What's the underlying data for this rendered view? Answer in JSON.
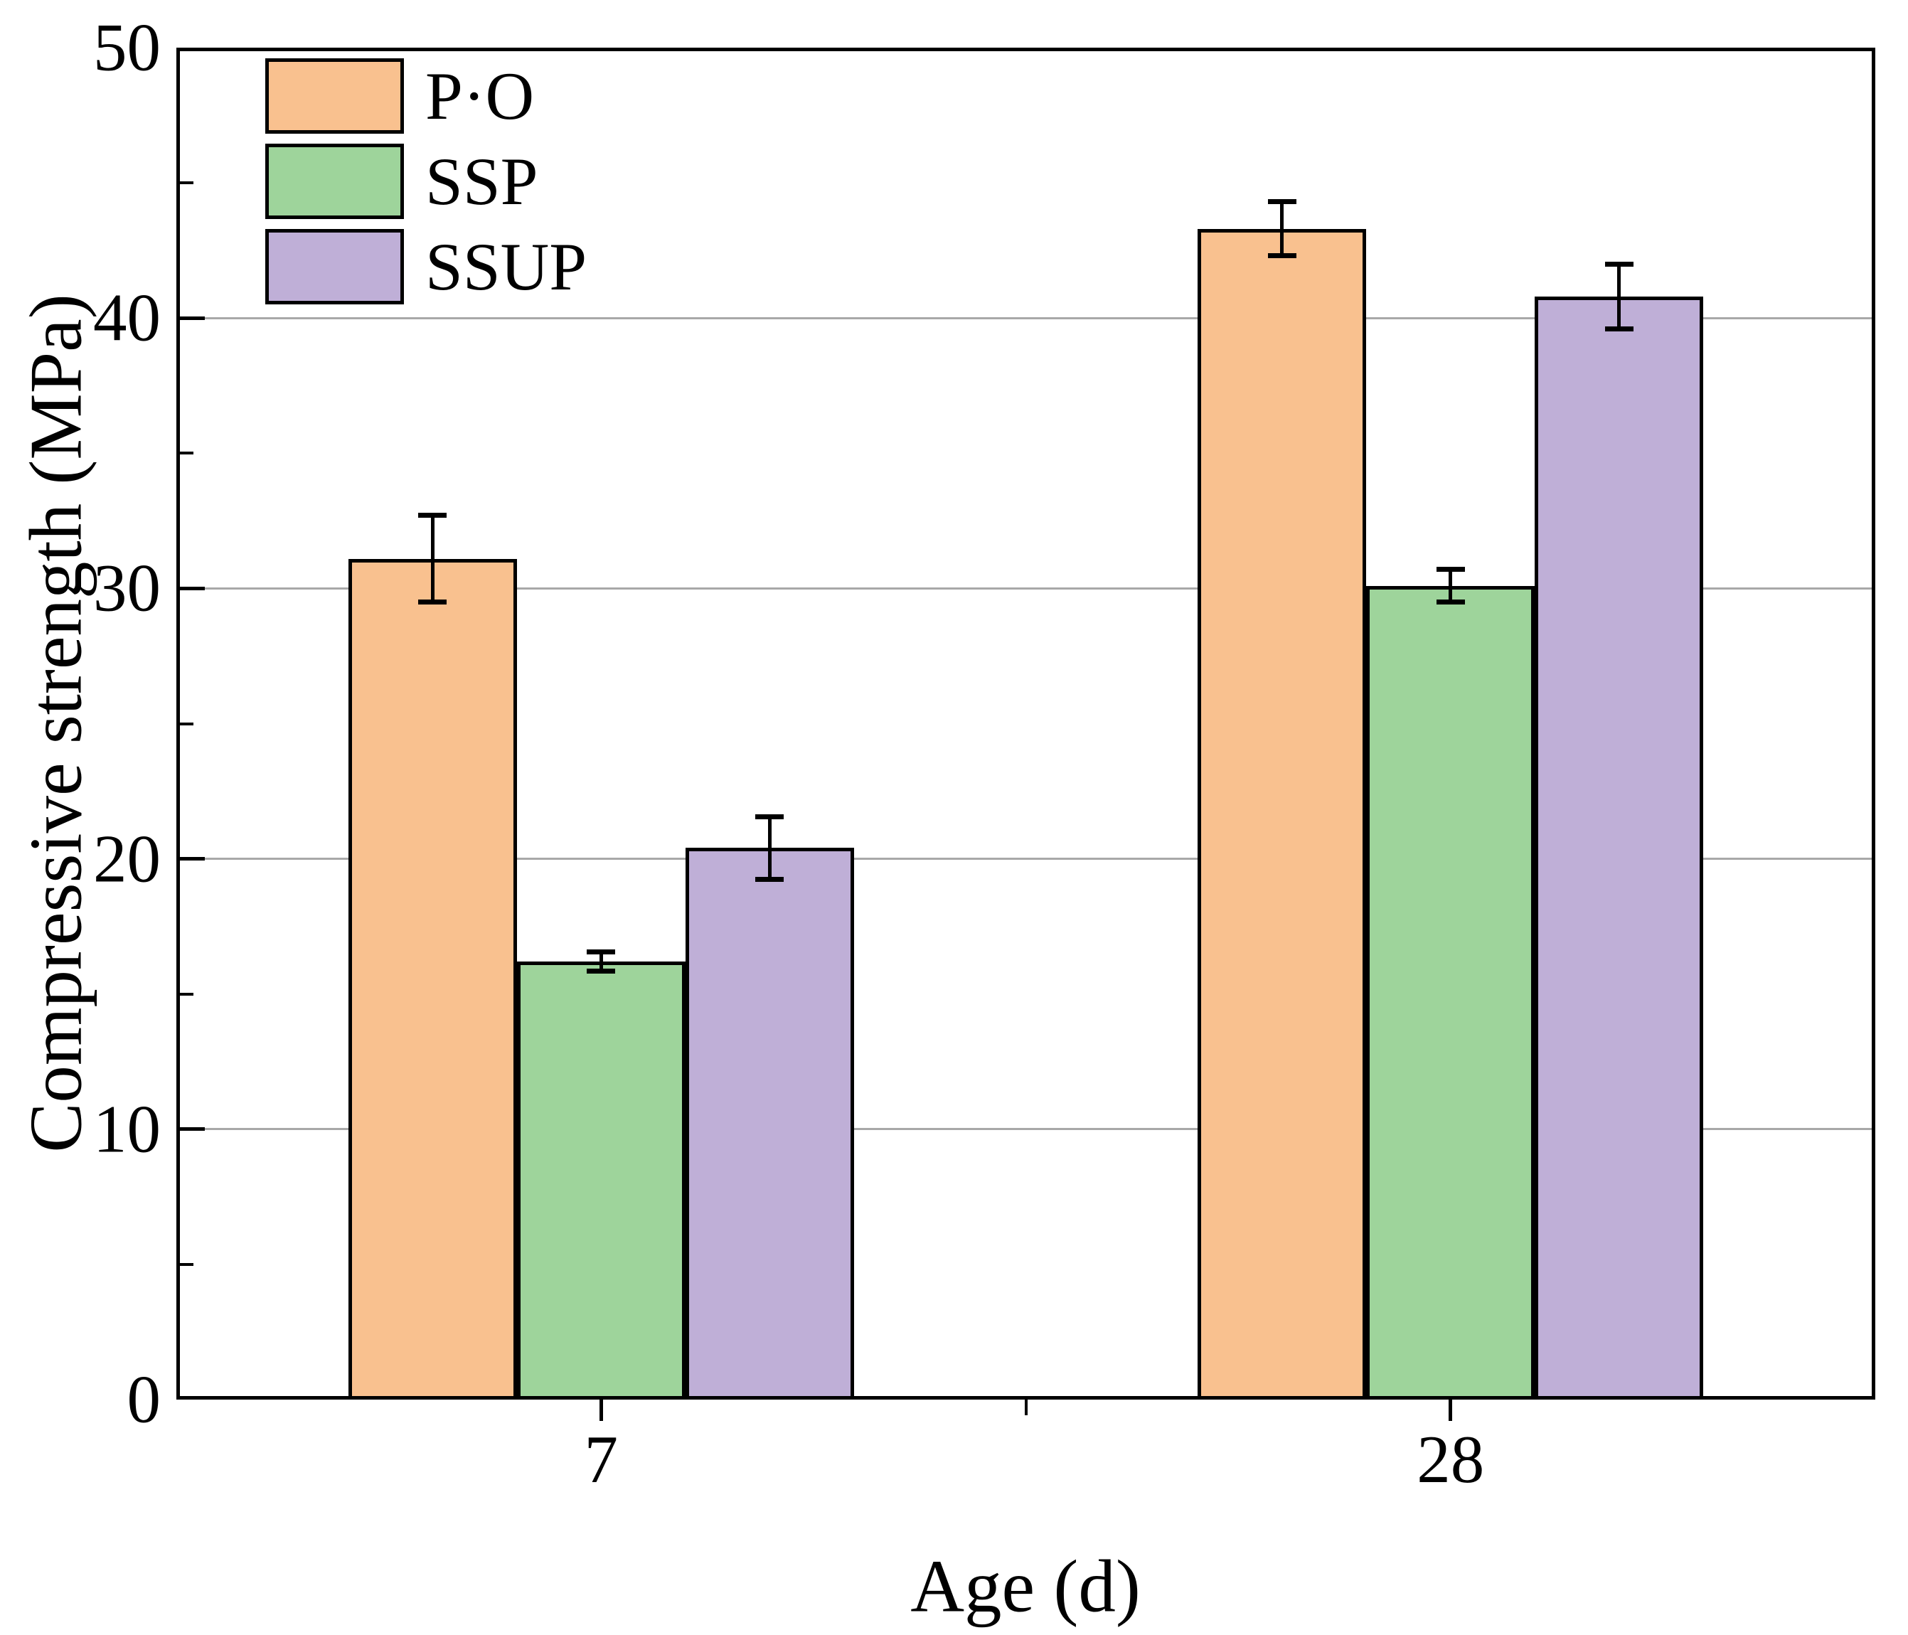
{
  "chart_data": {
    "type": "bar",
    "title": "",
    "xlabel": "Age (d)",
    "ylabel": "Compressive strength (MPa)",
    "categories": [
      "7",
      "28"
    ],
    "series": [
      {
        "name": "P·O",
        "color": "#F9C18F",
        "values": [
          31.1,
          43.3
        ],
        "errors": [
          1.6,
          1.0
        ]
      },
      {
        "name": "SSP",
        "color": "#9ED49B",
        "values": [
          16.2,
          30.1
        ],
        "errors": [
          0.35,
          0.6
        ]
      },
      {
        "name": "SSUP",
        "color": "#BFAFD7",
        "values": [
          20.4,
          40.8
        ],
        "errors": [
          1.15,
          1.2
        ]
      }
    ],
    "ylim": [
      0,
      50
    ],
    "yticks": [
      0,
      10,
      20,
      30,
      40,
      50
    ],
    "ytick_minor_step": 5,
    "grid": true,
    "grid_values": [
      10,
      20,
      30,
      40
    ],
    "grid_color": "#A8A8A8",
    "axis_color": "#000000",
    "bar_edge_color": "#000000",
    "legend_position": "top-left"
  }
}
